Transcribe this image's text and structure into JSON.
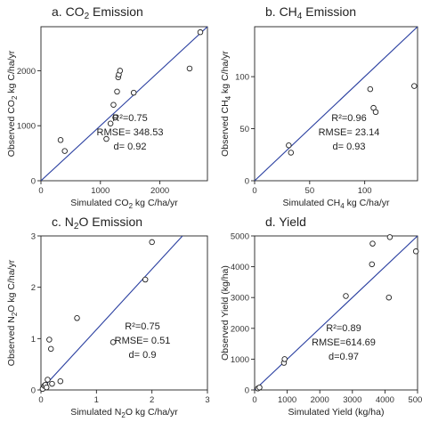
{
  "chart_data": [
    {
      "type": "scatter",
      "title": "a. CO",
      "title_sub": "2",
      "title_tail": " Emission",
      "xlabel": "Simulated CO",
      "xlabel_sub": "2",
      "xlabel_tail": " kg C/ha/yr",
      "ylabel": "Observed CO",
      "ylabel_sub": "2",
      "ylabel_tail": " kg C/ha/yr",
      "xlim": [
        0,
        2800
      ],
      "ylim": [
        0,
        2800
      ],
      "xticks": [
        0,
        1000,
        2000
      ],
      "yticks": [
        0,
        1000,
        2000
      ],
      "x": [
        330,
        400,
        1100,
        1170,
        1220,
        1250,
        1280,
        1300,
        1310,
        1330,
        1560,
        2500,
        2680
      ],
      "y": [
        740,
        540,
        760,
        1040,
        1380,
        1150,
        1620,
        1880,
        1930,
        2000,
        1600,
        2040,
        2700
      ],
      "fit": [
        [
          0,
          0
        ],
        [
          2800,
          2800
        ]
      ],
      "stats": [
        "R²=0.75",
        "RMSE= 348.53",
        "d= 0.92"
      ],
      "line_color": "#2a3fa0"
    },
    {
      "type": "scatter",
      "title": "b. CH",
      "title_sub": "4",
      "title_tail": " Emission",
      "xlabel": "Simulated CH",
      "xlabel_sub": "4",
      "xlabel_tail": " kg C/ha/yr",
      "ylabel": "Observed CH",
      "ylabel_sub": "4",
      "ylabel_tail": " kg C/ha/yr",
      "xlim": [
        0,
        148
      ],
      "ylim": [
        0,
        148
      ],
      "xticks": [
        0,
        50,
        100
      ],
      "yticks": [
        0,
        50,
        100
      ],
      "x": [
        31,
        33,
        105,
        108,
        110,
        145
      ],
      "y": [
        34,
        27,
        88,
        70,
        66,
        91
      ],
      "fit": [
        [
          0,
          0
        ],
        [
          148,
          148
        ]
      ],
      "stats": [
        "R²=0.96",
        "RMSE= 23.14",
        "d= 0.93"
      ],
      "line_color": "#2a3fa0"
    },
    {
      "type": "scatter",
      "title": "c. N",
      "title_sub": "2",
      "title_tail": "O Emission",
      "xlabel": "Simulated N",
      "xlabel_sub": "2",
      "xlabel_tail": "O kg C/ha/yr",
      "ylabel": "Observed N",
      "ylabel_sub": "2",
      "ylabel_tail": "O kg C/ha/yr",
      "xlim": [
        0,
        3
      ],
      "ylim": [
        0,
        3
      ],
      "xticks": [
        0,
        1,
        2,
        3
      ],
      "yticks": [
        0,
        1,
        2,
        3
      ],
      "x": [
        0.03,
        0.06,
        0.08,
        0.1,
        0.12,
        0.15,
        0.18,
        0.2,
        0.35,
        0.65,
        1.3,
        1.88,
        2.0
      ],
      "y": [
        0.02,
        0.08,
        0.1,
        0.05,
        0.2,
        0.98,
        0.8,
        0.12,
        0.17,
        1.4,
        0.93,
        2.15,
        2.88
      ],
      "fit": [
        [
          0,
          0
        ],
        [
          2.55,
          3
        ]
      ],
      "stats": [
        "R²=0.75",
        "RMSE= 0.51",
        "d= 0.9"
      ],
      "line_color": "#2a3fa0"
    },
    {
      "type": "scatter",
      "title": "d. Yield",
      "title_sub": "",
      "title_tail": "",
      "xlabel": "Simulated Yield (kg/ha)",
      "xlabel_sub": "",
      "xlabel_tail": "",
      "ylabel": "Observed Yield (kg/ha)",
      "ylabel_sub": "",
      "ylabel_tail": "",
      "xlim": [
        0,
        5000
      ],
      "ylim": [
        0,
        5000
      ],
      "xticks": [
        0,
        1000,
        2000,
        3000,
        4000,
        5000
      ],
      "yticks": [
        0,
        1000,
        2000,
        3000,
        4000,
        5000
      ],
      "x": [
        100,
        150,
        900,
        920,
        2800,
        3600,
        3620,
        4120,
        4150,
        4950
      ],
      "y": [
        50,
        80,
        880,
        1000,
        3050,
        4080,
        4750,
        3000,
        4960,
        4500
      ],
      "fit": [
        [
          0,
          0
        ],
        [
          5000,
          5000
        ]
      ],
      "stats": [
        "R²=0.89",
        "RMSE=614.69",
        "d=0.97"
      ],
      "line_color": "#2a3fa0"
    }
  ]
}
